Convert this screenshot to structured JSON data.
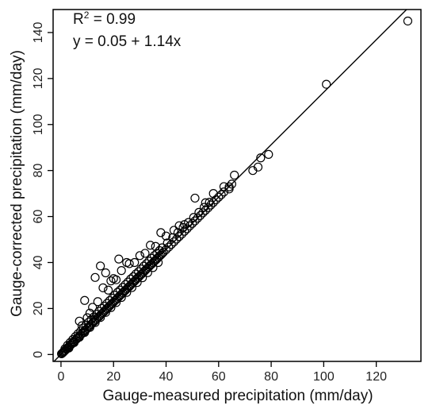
{
  "chart_data": {
    "type": "scatter",
    "title": "",
    "xlabel": "Gauge-measured precipitation (mm/day)",
    "ylabel": "Gauge-corrected precipitation (mm/day)",
    "xlim": [
      -3,
      137
    ],
    "ylim": [
      -3,
      150
    ],
    "xticks": [
      0,
      20,
      40,
      60,
      80,
      100,
      120
    ],
    "yticks": [
      0,
      20,
      40,
      60,
      80,
      100,
      120,
      140
    ],
    "grid": false,
    "fit_line": {
      "intercept": 0.05,
      "slope": 1.14
    },
    "annotations": {
      "r2_prefix": "R",
      "r2_sup": "2",
      "r2_value": " = 0.99",
      "equation": "y = 0.05 + 1.14x"
    },
    "points": [
      [
        0.2,
        0.3
      ],
      [
        0.5,
        0.6
      ],
      [
        0.8,
        0.9
      ],
      [
        1.0,
        1.2
      ],
      [
        1.3,
        1.5
      ],
      [
        1.6,
        1.8
      ],
      [
        2.0,
        2.3
      ],
      [
        2.3,
        2.6
      ],
      [
        2.7,
        3.1
      ],
      [
        3.0,
        3.4
      ],
      [
        3.4,
        3.9
      ],
      [
        3.8,
        4.3
      ],
      [
        4.2,
        4.8
      ],
      [
        4.6,
        5.3
      ],
      [
        5.0,
        5.7
      ],
      [
        5.5,
        6.3
      ],
      [
        6.0,
        6.8
      ],
      [
        6.5,
        7.4
      ],
      [
        7.0,
        8.0
      ],
      [
        7.5,
        8.6
      ],
      [
        8.0,
        9.1
      ],
      [
        8.5,
        9.7
      ],
      [
        9.0,
        10.3
      ],
      [
        9.5,
        10.8
      ],
      [
        10.0,
        11.4
      ],
      [
        10.5,
        12.0
      ],
      [
        11.0,
        12.5
      ],
      [
        11.5,
        13.1
      ],
      [
        12.0,
        13.7
      ],
      [
        12.5,
        14.3
      ],
      [
        13.0,
        14.8
      ],
      [
        13.5,
        15.4
      ],
      [
        14.0,
        16.0
      ],
      [
        14.5,
        16.5
      ],
      [
        15.0,
        17.1
      ],
      [
        15.5,
        17.7
      ],
      [
        16.0,
        18.2
      ],
      [
        16.5,
        18.8
      ],
      [
        17.0,
        19.4
      ],
      [
        17.5,
        20.0
      ],
      [
        18.0,
        20.5
      ],
      [
        18.5,
        21.1
      ],
      [
        19.0,
        21.7
      ],
      [
        19.5,
        22.2
      ],
      [
        20.0,
        22.8
      ],
      [
        20.5,
        23.4
      ],
      [
        21.0,
        23.9
      ],
      [
        21.5,
        24.5
      ],
      [
        22.0,
        25.1
      ],
      [
        22.5,
        25.7
      ],
      [
        23.0,
        26.2
      ],
      [
        23.5,
        26.8
      ],
      [
        24.0,
        27.4
      ],
      [
        24.5,
        27.9
      ],
      [
        25.0,
        28.5
      ],
      [
        25.5,
        29.1
      ],
      [
        26.0,
        29.6
      ],
      [
        26.5,
        30.2
      ],
      [
        27.0,
        30.8
      ],
      [
        27.5,
        31.4
      ],
      [
        28.0,
        31.9
      ],
      [
        28.5,
        32.5
      ],
      [
        29.0,
        33.1
      ],
      [
        29.5,
        33.6
      ],
      [
        30.0,
        34.2
      ],
      [
        30.5,
        34.8
      ],
      [
        31.0,
        35.3
      ],
      [
        31.5,
        35.9
      ],
      [
        32.0,
        36.5
      ],
      [
        32.5,
        37.1
      ],
      [
        33.0,
        37.6
      ],
      [
        33.5,
        38.2
      ],
      [
        34.0,
        38.8
      ],
      [
        34.5,
        39.3
      ],
      [
        35.0,
        39.9
      ],
      [
        35.5,
        40.5
      ],
      [
        36.0,
        41.0
      ],
      [
        36.5,
        41.6
      ],
      [
        37.0,
        42.2
      ],
      [
        37.5,
        42.8
      ],
      [
        38.0,
        43.3
      ],
      [
        38.5,
        43.9
      ],
      [
        39.0,
        44.5
      ],
      [
        40.0,
        45.6
      ],
      [
        41.0,
        46.7
      ],
      [
        42.0,
        47.9
      ],
      [
        43.0,
        49.0
      ],
      [
        44.0,
        50.2
      ],
      [
        45.0,
        51.3
      ],
      [
        46.0,
        52.4
      ],
      [
        47.0,
        53.6
      ],
      [
        48.0,
        54.7
      ],
      [
        49.0,
        55.9
      ],
      [
        50.0,
        57.0
      ],
      [
        51.0,
        58.1
      ],
      [
        52.0,
        59.3
      ],
      [
        53.0,
        60.4
      ],
      [
        54.0,
        61.6
      ],
      [
        55.0,
        62.7
      ],
      [
        56.0,
        63.8
      ],
      [
        57.0,
        65.0
      ],
      [
        58.0,
        66.1
      ],
      [
        59.0,
        67.3
      ],
      [
        60.0,
        68.4
      ],
      [
        61.0,
        69.5
      ],
      [
        62.0,
        70.7
      ],
      [
        64.0,
        72.9
      ],
      [
        65.0,
        74.1
      ],
      [
        1.5,
        2.5
      ],
      [
        2.5,
        4.0
      ],
      [
        3.5,
        5.2
      ],
      [
        4.5,
        6.5
      ],
      [
        5.5,
        7.8
      ],
      [
        6.5,
        9.0
      ],
      [
        7.5,
        10.2
      ],
      [
        8.5,
        11.5
      ],
      [
        9.5,
        12.8
      ],
      [
        10.5,
        14.0
      ],
      [
        11.5,
        15.2
      ],
      [
        12.5,
        16.3
      ],
      [
        13.5,
        17.5
      ],
      [
        14.5,
        18.8
      ],
      [
        15.5,
        20.0
      ],
      [
        16.5,
        21.0
      ],
      [
        17.5,
        22.2
      ],
      [
        18.5,
        23.4
      ],
      [
        19.5,
        24.5
      ],
      [
        20.5,
        25.8
      ],
      [
        21.5,
        27.0
      ],
      [
        22.5,
        28.0
      ],
      [
        23.5,
        29.2
      ],
      [
        24.5,
        30.4
      ],
      [
        25.5,
        31.5
      ],
      [
        26.5,
        32.8
      ],
      [
        27.5,
        33.8
      ],
      [
        28.5,
        35.0
      ],
      [
        29.5,
        36.0
      ],
      [
        30.5,
        37.2
      ],
      [
        31.5,
        38.4
      ],
      [
        32.5,
        39.5
      ],
      [
        33.5,
        40.6
      ],
      [
        34.5,
        41.8
      ],
      [
        35.5,
        43.0
      ],
      [
        36.5,
        44.0
      ],
      [
        37.5,
        45.2
      ],
      [
        38.5,
        46.4
      ],
      [
        40.5,
        48.5
      ],
      [
        42.5,
        50.8
      ],
      [
        44.5,
        53.0
      ],
      [
        46.5,
        55.2
      ],
      [
        48.5,
        57.4
      ],
      [
        50.5,
        59.6
      ],
      [
        52.5,
        61.8
      ],
      [
        54.5,
        64.0
      ],
      [
        56.5,
        66.2
      ],
      [
        3.0,
        2.8
      ],
      [
        5.0,
        5.2
      ],
      [
        7.0,
        7.5
      ],
      [
        9.0,
        9.6
      ],
      [
        11.0,
        11.8
      ],
      [
        13.0,
        13.9
      ],
      [
        15.0,
        16.1
      ],
      [
        17.0,
        18.3
      ],
      [
        19.0,
        20.4
      ],
      [
        21.0,
        22.6
      ],
      [
        23.0,
        24.8
      ],
      [
        25.0,
        27.0
      ],
      [
        27.0,
        29.1
      ],
      [
        29.0,
        31.3
      ],
      [
        31.0,
        33.4
      ],
      [
        33.0,
        35.6
      ],
      [
        35.0,
        37.8
      ],
      [
        37.0,
        40.0
      ],
      [
        7.0,
        14.5
      ],
      [
        8.0,
        12.5
      ],
      [
        9.0,
        23.5
      ],
      [
        10.0,
        16.0
      ],
      [
        11.0,
        18.0
      ],
      [
        12.0,
        20.5
      ],
      [
        13.0,
        33.5
      ],
      [
        14.0,
        23.0
      ],
      [
        15.0,
        38.5
      ],
      [
        16.0,
        29.0
      ],
      [
        17.0,
        35.5
      ],
      [
        18.0,
        28.0
      ],
      [
        19.0,
        32.0
      ],
      [
        20.0,
        33.0
      ],
      [
        21.0,
        32.5
      ],
      [
        22.0,
        41.5
      ],
      [
        23.0,
        36.5
      ],
      [
        25.0,
        40.0
      ],
      [
        26.0,
        39.5
      ],
      [
        28.0,
        40.0
      ],
      [
        30.0,
        43.0
      ],
      [
        32.0,
        44.0
      ],
      [
        34.0,
        47.5
      ],
      [
        36.0,
        47.0
      ],
      [
        38.0,
        53.0
      ],
      [
        40.0,
        51.5
      ],
      [
        43.0,
        54.0
      ],
      [
        45.0,
        56.0
      ],
      [
        47.0,
        56.5
      ],
      [
        51.0,
        68.0
      ],
      [
        55.0,
        66.0
      ],
      [
        58.0,
        70.0
      ],
      [
        62.0,
        73.0
      ],
      [
        64.0,
        72.0
      ],
      [
        66.0,
        78.0
      ],
      [
        73.0,
        80.0
      ],
      [
        75.0,
        81.5
      ],
      [
        76.0,
        85.5
      ],
      [
        79.0,
        87.0
      ],
      [
        101.0,
        117.5
      ],
      [
        132.0,
        145.0
      ]
    ]
  }
}
